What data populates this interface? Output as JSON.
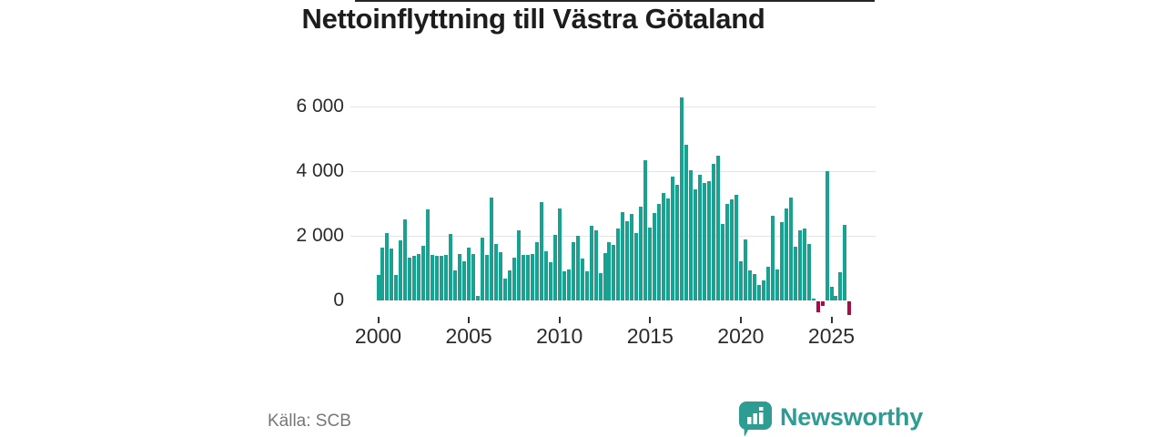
{
  "header": {
    "title": "Nettoinflyttning till Västra Götaland"
  },
  "footer": {
    "source": "Källa: SCB",
    "brand": "Newsworthy"
  },
  "colors": {
    "positive_bar": "#18a292",
    "negative_bar": "#a60e45",
    "brand_teal": "#2d9c92",
    "axis_line": "#252525",
    "gridline": "#e4e4e4"
  },
  "chart_data": {
    "type": "bar",
    "title": "Nettoinflyttning till Västra Götaland",
    "period": "quarterly",
    "start_quarter": "2000Q1",
    "end_quarter": "2026Q1",
    "grid": "horizontal",
    "legend": "none",
    "y_axis": {
      "ticks": [
        0,
        2000,
        4000,
        6000
      ],
      "tick_labels": [
        "0",
        "2 000",
        "4 000",
        "6 000"
      ],
      "range": [
        -600,
        6600
      ]
    },
    "x_axis": {
      "tick_labels": [
        "2000",
        "2005",
        "2010",
        "2015",
        "2020",
        "2025"
      ],
      "bars_per_year": 4,
      "ticks_every_n_bars": 20
    },
    "values": [
      800,
      1620,
      2080,
      1600,
      780,
      1860,
      2500,
      1330,
      1370,
      1450,
      1690,
      2830,
      1400,
      1370,
      1370,
      1400,
      2050,
      920,
      1450,
      1200,
      1640,
      1450,
      150,
      1950,
      1400,
      3190,
      1740,
      1500,
      675,
      920,
      1325,
      2155,
      1420,
      1420,
      1450,
      1790,
      3040,
      1520,
      1180,
      2030,
      2855,
      905,
      950,
      1790,
      2000,
      1285,
      905,
      2305,
      2160,
      840,
      1475,
      1790,
      1715,
      2220,
      2725,
      2460,
      2670,
      2080,
      2890,
      4330,
      2255,
      2715,
      3000,
      3330,
      3160,
      3835,
      3570,
      6285,
      4810,
      4030,
      3450,
      3885,
      3645,
      3695,
      4215,
      4475,
      2360,
      2975,
      3125,
      3270,
      1225,
      1890,
      925,
      810,
      475,
      620,
      1045,
      2625,
      950,
      2410,
      2855,
      3170,
      1665,
      2170,
      2235,
      1760,
      70,
      -330,
      -140,
      4000,
      430,
      140,
      875,
      2330,
      -430
    ]
  }
}
